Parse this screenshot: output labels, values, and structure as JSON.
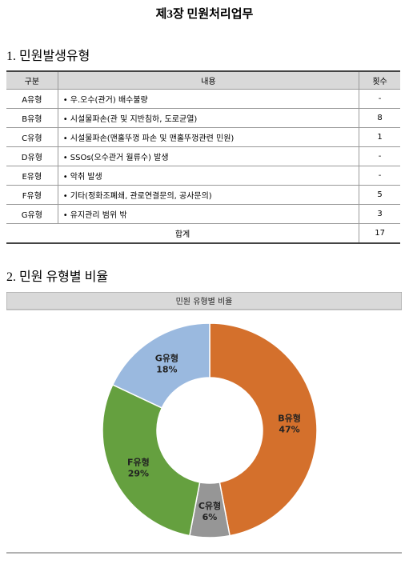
{
  "title": "제3장 민원처리업무",
  "section1": "1. 민원발생유형",
  "table": {
    "headers": [
      "구분",
      "내용",
      "횟수"
    ],
    "rows": [
      [
        "A유형",
        "• 우.오수(관거) 배수불량",
        "-"
      ],
      [
        "B유형",
        "• 시설물파손(관 및 지반침하, 도로균열)",
        "8"
      ],
      [
        "C유형",
        "• 시설물파손(맨홀뚜껑 파손 및 맨홀뚜껑관련 민원)",
        "1"
      ],
      [
        "D유형",
        "• SSOs(오수관거 월류수) 발생",
        "-"
      ],
      [
        "E유형",
        "• 악취 발생",
        "-"
      ],
      [
        "F유형",
        "• 기타(정화조폐쇄, 관로연결문의, 공사문의)",
        "5"
      ],
      [
        "G유형",
        "• 유지관리 범위 밖",
        "3"
      ]
    ],
    "total": [
      "합계",
      "17"
    ]
  },
  "section2": "2. 민원 유형별 비율",
  "chart_data": {
    "type": "donut",
    "title": "민원 유형별 비율",
    "categories": [
      "B유형",
      "C유형",
      "F유형",
      "G유형"
    ],
    "values": [
      47,
      6,
      29,
      18
    ],
    "value_labels": [
      "47%",
      "6%",
      "29%",
      "18%"
    ],
    "colors": [
      "#d4702c",
      "#969696",
      "#65a03f",
      "#9ab9df"
    ]
  }
}
